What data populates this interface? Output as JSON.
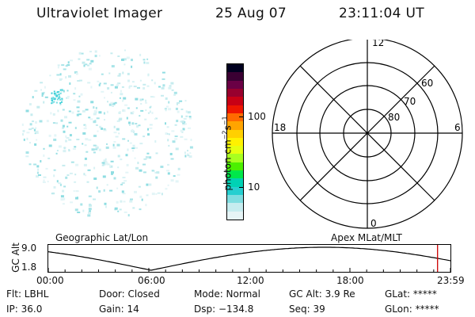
{
  "header": {
    "title": "Ultraviolet Imager",
    "date": "25 Aug 07",
    "time": "23:11:04 UT"
  },
  "colorbar": {
    "unit_label": "photon cm",
    "unit_exp1": "−2",
    "unit_s": "s",
    "unit_exp2": "−1",
    "tick_labels": [
      "100",
      "10"
    ],
    "colors": [
      "#000020",
      "#3a0033",
      "#6a0045",
      "#98002e",
      "#c80015",
      "#ee1600",
      "#ff6a00",
      "#ffa400",
      "#ffd000",
      "#fff200",
      "#e6ff10",
      "#a8ff20",
      "#4cf000",
      "#00e84a",
      "#00d2b4",
      "#26cfd0",
      "#7fdde0",
      "#c6ecef",
      "#e6f4f6"
    ]
  },
  "polar": {
    "hour_labels": [
      "12",
      "18",
      "6",
      "0"
    ],
    "lat_labels": [
      "60",
      "70",
      "80"
    ]
  },
  "timeline": {
    "left_label": "Geographic Lat/Lon",
    "right_label": "Apex MLat/MLT",
    "y_axis_label": "GC Alt",
    "y_top": "9.0",
    "y_bottom": "1.8",
    "x_ticks": [
      "00:00",
      "06:00",
      "12:00",
      "18:00",
      "23:59"
    ],
    "marker_time_fraction": 0.966,
    "marker_color": "#cc0000"
  },
  "info": {
    "filter": "Flt: LBHL",
    "ip": "IP: 36.0",
    "door": "Door: Closed",
    "gain": "Gain: 14",
    "mode": "Mode: Normal",
    "dsp": "Dsp: −134.8",
    "gc_alt": "GC Alt: 3.9 Re",
    "seq": "Seq: 39",
    "glat": "GLat: *****",
    "glon": "GLon: *****"
  }
}
